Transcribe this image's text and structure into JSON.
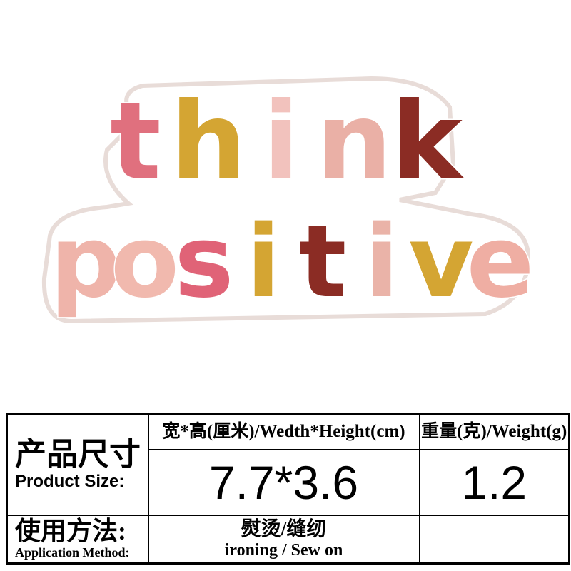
{
  "patch": {
    "line1": "think",
    "line2": "positive",
    "line1_letters": [
      "t",
      "h",
      "i",
      "n",
      "k"
    ],
    "line2_letters": [
      "p",
      "o",
      "s",
      "i",
      "t",
      "i",
      "v",
      "e"
    ],
    "line1_colors": [
      "#e0707e",
      "#d4a533",
      "#f2c2bd",
      "#eab0a6",
      "#8b2c24"
    ],
    "line2_colors": [
      "#efb4aa",
      "#f1b9ae",
      "#e06377",
      "#d4a533",
      "#8b2c24",
      "#eab3a8",
      "#d4a533",
      "#efaea3"
    ]
  },
  "table": {
    "size_label_zh": "产品尺寸",
    "size_label_en": "Product Size:",
    "dim_header": "宽*高(厘米)/Wedth*Height(cm)",
    "weight_header": "重量(克)/Weight(g)",
    "dim_value": "7.7*3.6",
    "weight_value": "1.2",
    "method_label_zh": "使用方法:",
    "method_label_en": "Application Method:",
    "method_zh": "熨烫/缝纫",
    "method_en": "ironing / Sew on",
    "extra_value": ""
  }
}
